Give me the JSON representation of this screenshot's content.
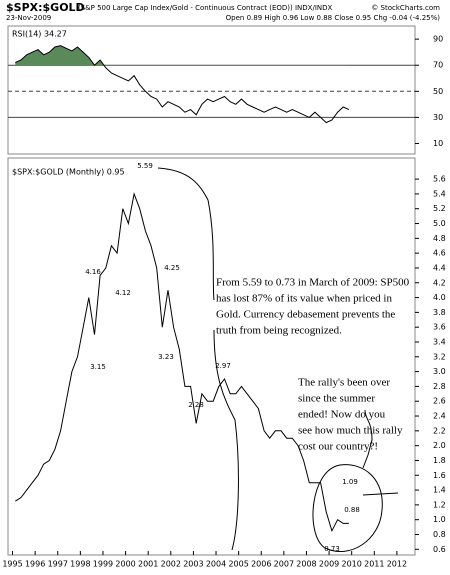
{
  "header": {
    "title": "$SPX:$GOLD",
    "subtitle": "(S&P 500 Large Cap Index/Gold - Continuous Contract (EOD)) INDX/INDX",
    "date": "23-Nov-2009",
    "quote": "Open 0.89 High 0.96 Low 0.88 Close 0.95 Chg -0.04 (-4.25%)",
    "credit": "© StockCharts.com"
  },
  "chart_data": [
    {
      "type": "line",
      "legend": "RSI(14) 34.27",
      "color": "#000000",
      "fill_above": 70,
      "fill_color": "#5a8a5a",
      "reference_lines": [
        70,
        50,
        30
      ],
      "x": [
        1995.125,
        1995.375,
        1995.625,
        1995.875,
        1996.125,
        1996.375,
        1996.625,
        1996.875,
        1997.125,
        1997.375,
        1997.625,
        1997.875,
        1998.125,
        1998.375,
        1998.625,
        1998.875,
        1999.125,
        1999.375,
        1999.625,
        1999.875,
        2000.125,
        2000.375,
        2000.625,
        2000.875,
        2001.125,
        2001.375,
        2001.625,
        2001.875,
        2002.125,
        2002.375,
        2002.625,
        2002.875,
        2003.125,
        2003.375,
        2003.625,
        2003.875,
        2004.125,
        2004.375,
        2004.625,
        2004.875,
        2005.125,
        2005.375,
        2005.625,
        2005.875,
        2006.125,
        2006.375,
        2006.625,
        2006.875,
        2007.125,
        2007.375,
        2007.625,
        2007.875,
        2008.125,
        2008.375,
        2008.625,
        2008.875,
        2009.125,
        2009.375,
        2009.625,
        2009.875
      ],
      "values": [
        72,
        74,
        78,
        80,
        82,
        78,
        80,
        84,
        85,
        83,
        81,
        84,
        80,
        76,
        70,
        74,
        68,
        64,
        62,
        60,
        58,
        62,
        55,
        50,
        46,
        44,
        38,
        42,
        40,
        38,
        34,
        36,
        32,
        40,
        44,
        42,
        44,
        46,
        42,
        40,
        44,
        40,
        38,
        36,
        34,
        36,
        38,
        36,
        34,
        36,
        34,
        32,
        30,
        34,
        30,
        26,
        28,
        34,
        38,
        36
      ],
      "xlim": [
        1994.8,
        2012.8
      ],
      "ylim": [
        5,
        97
      ],
      "yticks": [
        90,
        70,
        50,
        30,
        10
      ]
    },
    {
      "type": "line",
      "legend": "$SPX:$GOLD (Monthly) 0.95",
      "color": "#000000",
      "x": [
        1995.125,
        1995.375,
        1995.625,
        1995.875,
        1996.125,
        1996.375,
        1996.625,
        1996.875,
        1997.125,
        1997.375,
        1997.625,
        1997.875,
        1998.125,
        1998.375,
        1998.625,
        1998.875,
        1999.125,
        1999.375,
        1999.625,
        1999.875,
        2000.125,
        2000.375,
        2000.625,
        2000.875,
        2001.125,
        2001.375,
        2001.625,
        2001.875,
        2002.125,
        2002.375,
        2002.625,
        2002.875,
        2003.125,
        2003.375,
        2003.625,
        2003.875,
        2004.125,
        2004.375,
        2004.625,
        2004.875,
        2005.125,
        2005.375,
        2005.625,
        2005.875,
        2006.125,
        2006.375,
        2006.625,
        2006.875,
        2007.125,
        2007.375,
        2007.625,
        2007.875,
        2008.125,
        2008.375,
        2008.625,
        2008.875,
        2009.125,
        2009.375,
        2009.625,
        2009.875
      ],
      "values": [
        1.25,
        1.3,
        1.4,
        1.5,
        1.6,
        1.75,
        1.8,
        1.95,
        2.2,
        2.6,
        3.0,
        3.2,
        3.6,
        4.0,
        3.5,
        4.3,
        4.4,
        4.7,
        4.6,
        5.2,
        5.0,
        5.4,
        5.2,
        4.9,
        4.7,
        4.4,
        3.6,
        4.1,
        3.6,
        3.3,
        2.8,
        2.8,
        2.3,
        2.7,
        2.6,
        2.6,
        2.8,
        2.9,
        2.7,
        2.7,
        2.8,
        2.7,
        2.6,
        2.5,
        2.2,
        2.1,
        2.2,
        2.2,
        2.1,
        2.1,
        2.0,
        1.8,
        1.5,
        1.5,
        1.5,
        1.1,
        0.85,
        1.0,
        0.95,
        0.95
      ],
      "xlim": [
        1994.8,
        2012.8
      ],
      "ylim": [
        0.55,
        5.75
      ],
      "xticks": [
        1995,
        1996,
        1997,
        1998,
        1999,
        2000,
        2001,
        2002,
        2003,
        2004,
        2005,
        2006,
        2007,
        2008,
        2009,
        2010,
        2011,
        2012
      ],
      "yticks": [
        0.6,
        0.8,
        {
          "value": 1,
          "label": "1.0"
        },
        1.2,
        1.4,
        1.6,
        1.8,
        {
          "value": 2,
          "label": "2.0"
        },
        2.2,
        2.4,
        2.6,
        2.8,
        {
          "value": 3,
          "label": "3.0"
        },
        3.2,
        3.4,
        3.6,
        3.8,
        {
          "value": 4,
          "label": "4.0"
        },
        4.2,
        4.4,
        4.6,
        4.8,
        {
          "value": 5,
          "label": "5.0"
        },
        5.2,
        5.4,
        5.6
      ],
      "annotations": [
        "5.59",
        "4.16",
        "4.12",
        "3.15",
        "4.25",
        "3.23",
        "2.28",
        "2.97",
        "1.09",
        "0.88",
        "0.73"
      ],
      "notes": [
        [
          "From 5.59 to 0.73 in March of 2009: SP500",
          "has lost 87% of its value when priced in",
          "Gold. Currency debasement prevents the",
          "truth from being recognized."
        ],
        [
          "The rally's been over",
          "since the summer",
          "ended! Now do you",
          "see how much this rally",
          "cost our country?!"
        ]
      ]
    }
  ]
}
